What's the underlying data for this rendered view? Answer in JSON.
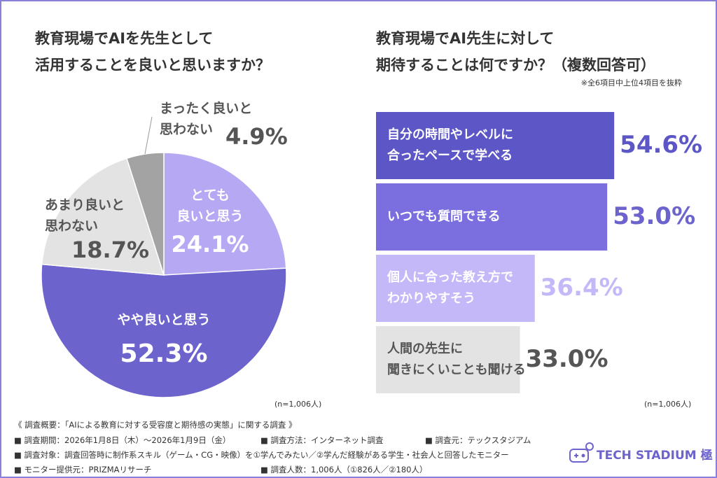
{
  "chart_data": [
    {
      "type": "pie",
      "title": "教育現場でAIを先生として\n活用することを良いと思いますか？",
      "categories": [
        "とても\n良いと思う",
        "やや良いと思う",
        "あまり良いと\n思わない",
        "まったく良いと\n思わない"
      ],
      "values": [
        24.1,
        52.3,
        18.7,
        4.9
      ],
      "value_labels": [
        "24.1%",
        "52.3%",
        "18.7%",
        "4.9%"
      ],
      "colors": [
        "#b7a8f4",
        "#6c63cc",
        "#e3e3e3",
        "#a3a3a3"
      ],
      "label_colors": [
        "#ffffff",
        "#ffffff",
        "#555555",
        "#555555"
      ],
      "note": "(n=1,006人)"
    },
    {
      "type": "bar",
      "orientation": "horizontal",
      "title": "教育現場でAI先生に対して\n期待することは何ですか？（複数回答可）",
      "subtitle": "※全6項目中上位4項目を抜粋",
      "categories": [
        "自分の時間やレベルに\n合ったペースで学べる",
        "いつでも質問できる",
        "個人に合った教え方で\nわかりやすそう",
        "人間の先生に\n聞きにくいことも聞ける"
      ],
      "values": [
        54.6,
        53.0,
        36.4,
        33.0
      ],
      "value_labels": [
        "54.6%",
        "53.0%",
        "36.4%",
        "33.0%"
      ],
      "colors": [
        "#5d56c6",
        "#7b6fe0",
        "#c4b8f8",
        "#e3e3e3"
      ],
      "label_colors": [
        "#5d56c6",
        "#6c63cc",
        "#c4b8f8",
        "#555555"
      ],
      "note": "(n=1,006人)"
    }
  ],
  "footer": {
    "heading": "《 調査概要：「AIによる教育に対する受容度と期待感の実態」に関する調査 》",
    "items": [
      "■ 調査期間：2026年1月8日（木）〜2026年1月9日（金）",
      "■ 調査方法：インターネット調査",
      "■ 調査元：テックスタジアム",
      "■ 調査対象：調査回答時に制作系スキル（ゲーム・CG・映像）を①学んでみたい／②学んだ経験がある学生・社会人と回答したモニター",
      "■ モニター提供元：PRIZMAリサーチ",
      "■ 調査人数：1,006人（①826人／②180人）"
    ]
  },
  "logo": "TECH STADIUM 極"
}
